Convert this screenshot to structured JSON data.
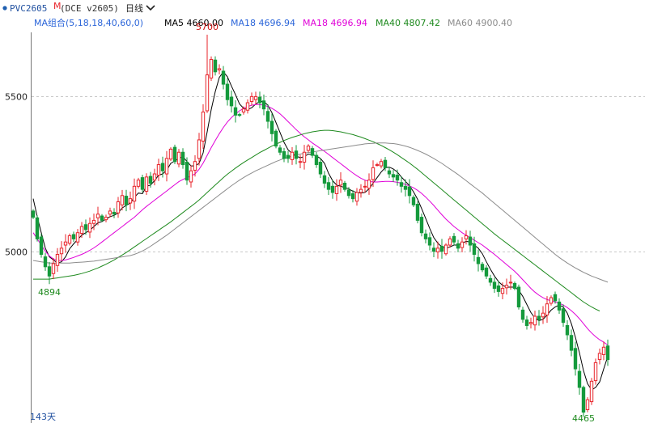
{
  "header": {
    "symbol": "PVC2605",
    "symbol_flag": "M",
    "exchange_code": "(DCE v2605)",
    "period": "日线",
    "period_icon": "chevron-down-icon",
    "status_dot_color": "#1f5fb0"
  },
  "indicator_bar": {
    "label": "MA组合(5,18,18,40,60,0)",
    "items": [
      {
        "name": "MA5",
        "value": "4660.00",
        "color": "#000000"
      },
      {
        "name": "MA18",
        "value": "4696.94",
        "color": "#2b65d9"
      },
      {
        "name": "MA18",
        "value": "4696.94",
        "color": "#e000d8"
      },
      {
        "name": "MA40",
        "value": "4807.42",
        "color": "#1e8a1e"
      },
      {
        "name": "MA60",
        "value": "4900.40",
        "color": "#8c8c8c"
      }
    ]
  },
  "footer": {
    "days_label": "143天"
  },
  "colors": {
    "up": "#e8232a",
    "down": "#159a3c",
    "grid": "#c8c8c8"
  },
  "chart_data": {
    "type": "candlestick",
    "y_ticks": [
      5500,
      5000
    ],
    "ylim": [
      4445,
      5765
    ],
    "annotations": [
      {
        "label": "5700",
        "index": 43,
        "kind": "high"
      },
      {
        "label": "4894",
        "index": 4,
        "kind": "low"
      },
      {
        "label": "4465",
        "index": 136,
        "kind": "low"
      }
    ],
    "close": [
      5110,
      5040,
      4990,
      4950,
      4920,
      4960,
      4990,
      5010,
      5030,
      5050,
      5040,
      5060,
      5080,
      5070,
      5090,
      5100,
      5120,
      5100,
      5110,
      5130,
      5120,
      5160,
      5180,
      5150,
      5170,
      5210,
      5230,
      5200,
      5240,
      5220,
      5250,
      5280,
      5260,
      5300,
      5330,
      5290,
      5320,
      5280,
      5230,
      5260,
      5290,
      5360,
      5450,
      5570,
      5620,
      5580,
      5590,
      5540,
      5490,
      5470,
      5440,
      5440,
      5460,
      5480,
      5500,
      5500,
      5480,
      5460,
      5420,
      5380,
      5340,
      5320,
      5300,
      5300,
      5320,
      5300,
      5290,
      5320,
      5340,
      5310,
      5280,
      5250,
      5220,
      5200,
      5190,
      5210,
      5230,
      5200,
      5180,
      5170,
      5190,
      5200,
      5210,
      5230,
      5270,
      5280,
      5290,
      5270,
      5250,
      5240,
      5230,
      5210,
      5200,
      5180,
      5150,
      5100,
      5060,
      5040,
      5020,
      5000,
      5010,
      5000,
      5020,
      5040,
      5030,
      5010,
      5030,
      5050,
      5020,
      4990,
      4960,
      4940,
      4920,
      4900,
      4880,
      4870,
      4880,
      4890,
      4900,
      4880,
      4820,
      4780,
      4760,
      4770,
      4790,
      4780,
      4800,
      4830,
      4850,
      4840,
      4810,
      4770,
      4730,
      4680,
      4620,
      4560,
      4480,
      4520,
      4580,
      4640,
      4670,
      4690,
      4650
    ],
    "ma": [
      {
        "name": "MA5",
        "values": [
          5170,
          5112,
          5060,
          5010,
          4982,
          4972,
          4962,
          4966,
          4982,
          5008,
          5024,
          5038,
          5052,
          5060,
          5068,
          5080,
          5092,
          5096,
          5104,
          5112,
          5116,
          5124,
          5140,
          5148,
          5156,
          5174,
          5188,
          5186,
          5210,
          5214,
          5228,
          5246,
          5250,
          5262,
          5284,
          5292,
          5300,
          5306,
          5290,
          5276,
          5276,
          5284,
          5318,
          5386,
          5458,
          5516,
          5562,
          5580,
          5564,
          5534,
          5506,
          5476,
          5462,
          5458,
          5464,
          5476,
          5484,
          5484,
          5472,
          5448,
          5416,
          5384,
          5352,
          5328,
          5316,
          5308,
          5302,
          5306,
          5314,
          5312,
          5308,
          5300,
          5284,
          5252,
          5228,
          5214,
          5210,
          5206,
          5202,
          5194,
          5190,
          5188,
          5190,
          5202,
          5220,
          5238,
          5256,
          5270,
          5272,
          5266,
          5256,
          5240,
          5226,
          5212,
          5192,
          5168,
          5138,
          5106,
          5074,
          5044,
          5026,
          5014,
          5010,
          5014,
          5020,
          5020,
          5026,
          5032,
          5030,
          5020,
          5010,
          4992,
          4966,
          4942,
          4920,
          4902,
          4890,
          4884,
          4884,
          4884,
          4874,
          4854,
          4828,
          4802,
          4784,
          4776,
          4780,
          4794,
          4810,
          4820,
          4826,
          4820,
          4800,
          4766,
          4722,
          4672,
          4614,
          4572,
          4552,
          4560,
          4578,
          4620,
          4660
        ]
      },
      {
        "name": "MA18",
        "values": [
          5060,
          5040,
          5020,
          5000,
          4985,
          4975,
          4970,
          4970,
          4972,
          4976,
          4980,
          4985,
          4990,
          4996,
          5003,
          5011,
          5020,
          5030,
          5040,
          5050,
          5060,
          5070,
          5080,
          5090,
          5100,
          5110,
          5122,
          5134,
          5145,
          5155,
          5165,
          5175,
          5185,
          5195,
          5205,
          5215,
          5225,
          5232,
          5238,
          5243,
          5250,
          5265,
          5285,
          5310,
          5335,
          5358,
          5380,
          5400,
          5418,
          5432,
          5444,
          5454,
          5462,
          5468,
          5472,
          5474,
          5474,
          5472,
          5468,
          5462,
          5454,
          5444,
          5432,
          5419,
          5406,
          5393,
          5381,
          5370,
          5360,
          5350,
          5341,
          5332,
          5323,
          5313,
          5303,
          5293,
          5283,
          5273,
          5263,
          5253,
          5244,
          5236,
          5230,
          5226,
          5224,
          5224,
          5225,
          5226,
          5226,
          5225,
          5223,
          5220,
          5216,
          5211,
          5205,
          5197,
          5187,
          5175,
          5162,
          5148,
          5133,
          5118,
          5104,
          5092,
          5080,
          5070,
          5060,
          5052,
          5044,
          5036,
          5028,
          5020,
          5010,
          5000,
          4990,
          4979,
          4968,
          4957,
          4946,
          4935,
          4922,
          4908,
          4894,
          4880,
          4868,
          4858,
          4850,
          4844,
          4840,
          4836,
          4832,
          4826,
          4818,
          4808,
          4796,
          4782,
          4766,
          4750,
          4736,
          4724,
          4714,
          4706,
          4697
        ]
      },
      {
        "name": "MA40",
        "values": [
          4910,
          4910,
          4910,
          4910,
          4910,
          4912,
          4914,
          4916,
          4918,
          4920,
          4922,
          4925,
          4928,
          4932,
          4936,
          4941,
          4946,
          4952,
          4958,
          4965,
          4972,
          4980,
          4988,
          4996,
          5005,
          5014,
          5023,
          5032,
          5041,
          5050,
          5059,
          5068,
          5077,
          5086,
          5095,
          5105,
          5115,
          5125,
          5135,
          5145,
          5155,
          5166,
          5178,
          5190,
          5202,
          5214,
          5226,
          5238,
          5249,
          5259,
          5269,
          5278,
          5287,
          5295,
          5303,
          5311,
          5319,
          5326,
          5333,
          5340,
          5346,
          5352,
          5358,
          5363,
          5368,
          5372,
          5376,
          5380,
          5383,
          5386,
          5388,
          5390,
          5391,
          5391,
          5390,
          5388,
          5386,
          5383,
          5380,
          5377,
          5373,
          5369,
          5364,
          5359,
          5354,
          5348,
          5342,
          5335,
          5328,
          5320,
          5312,
          5303,
          5294,
          5285,
          5275,
          5265,
          5254,
          5243,
          5232,
          5221,
          5210,
          5199,
          5188,
          5177,
          5166,
          5155,
          5144,
          5133,
          5122,
          5111,
          5100,
          5089,
          5078,
          5067,
          5056,
          5046,
          5036,
          5026,
          5016,
          5006,
          4996,
          4986,
          4976,
          4966,
          4956,
          4946,
          4936,
          4926,
          4916,
          4906,
          4896,
          4886,
          4876,
          4866,
          4856,
          4846,
          4836,
          4828,
          4820,
          4813,
          4807
        ]
      },
      {
        "name": "MA60",
        "values": [
          4970,
          4968,
          4966,
          4964,
          4962,
          4962,
          4962,
          4962,
          4962,
          4962,
          4963,
          4964,
          4965,
          4966,
          4967,
          4968,
          4970,
          4972,
          4974,
          4976,
          4978,
          4980,
          4982,
          4984,
          4986,
          4990,
          4995,
          5001,
          5008,
          5016,
          5025,
          5034,
          5043,
          5052,
          5062,
          5072,
          5082,
          5092,
          5102,
          5112,
          5122,
          5132,
          5142,
          5152,
          5162,
          5172,
          5182,
          5192,
          5202,
          5212,
          5221,
          5230,
          5238,
          5246,
          5253,
          5260,
          5266,
          5272,
          5278,
          5284,
          5290,
          5295,
          5300,
          5304,
          5308,
          5311,
          5314,
          5317,
          5319,
          5321,
          5323,
          5325,
          5327,
          5329,
          5331,
          5333,
          5335,
          5337,
          5339,
          5341,
          5343,
          5345,
          5347,
          5348,
          5349,
          5350,
          5350,
          5350,
          5349,
          5348,
          5346,
          5343,
          5340,
          5336,
          5331,
          5326,
          5320,
          5314,
          5307,
          5300,
          5292,
          5284,
          5275,
          5266,
          5257,
          5248,
          5238,
          5228,
          5218,
          5208,
          5198,
          5188,
          5177,
          5166,
          5155,
          5144,
          5133,
          5122,
          5111,
          5100,
          5089,
          5078,
          5067,
          5056,
          5045,
          5034,
          5023,
          5012,
          5001,
          4990,
          4980,
          4971,
          4962,
          4954,
          4946,
          4939,
          4932,
          4926,
          4920,
          4915,
          4910,
          4905,
          4900
        ]
      }
    ]
  }
}
